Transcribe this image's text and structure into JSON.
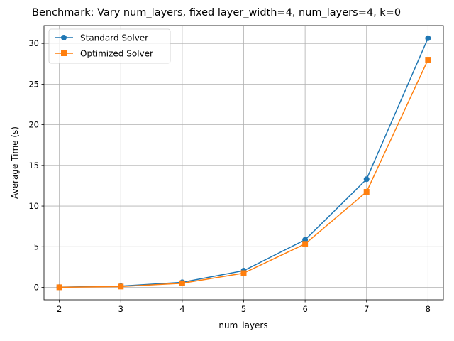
{
  "chart_data": {
    "type": "line",
    "title": "Benchmark: Vary num_layers, fixed layer_width=4, num_layers=4, k=0",
    "xlabel": "num_layers",
    "ylabel": "Average Time (s)",
    "x": [
      2,
      3,
      4,
      5,
      6,
      7,
      8
    ],
    "xlim": [
      1.75,
      8.25
    ],
    "ylim": [
      -1.53,
      32.2
    ],
    "xticks": [
      "2",
      "3",
      "4",
      "5",
      "6",
      "7",
      "8"
    ],
    "yticks": [
      "0",
      "5",
      "10",
      "15",
      "20",
      "25",
      "30"
    ],
    "grid": true,
    "legend_position": "top-left",
    "series": [
      {
        "name": "Standard Solver",
        "color": "#1f77b4",
        "marker": "circle",
        "values": [
          0.02,
          0.15,
          0.62,
          2.05,
          5.85,
          13.3,
          30.65
        ]
      },
      {
        "name": "Optimized Solver",
        "color": "#ff7f0e",
        "marker": "square",
        "values": [
          0.01,
          0.1,
          0.5,
          1.75,
          5.35,
          11.75,
          28.0
        ]
      }
    ]
  }
}
